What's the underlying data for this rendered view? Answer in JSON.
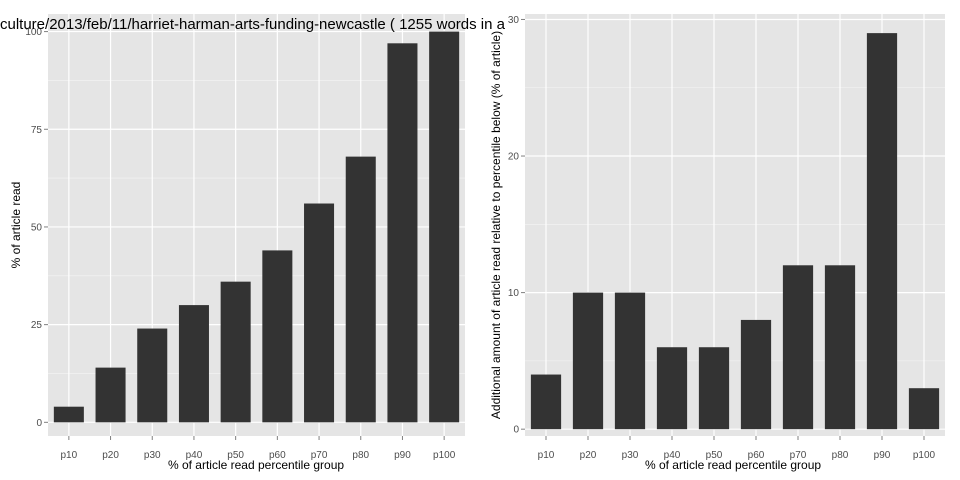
{
  "chart_data": [
    {
      "type": "bar",
      "title": "culture/2013/feb/11/harriet-harman-arts-funding-newcastle ( 1255 words in a",
      "xlabel": "% of article read percentile group",
      "ylabel": "% of article read",
      "categories": [
        "p10",
        "p20",
        "p30",
        "p40",
        "p50",
        "p60",
        "p70",
        "p80",
        "p90",
        "p100"
      ],
      "values": [
        4,
        14,
        24,
        30,
        36,
        44,
        56,
        68,
        97,
        100
      ],
      "ylim": [
        -3.5,
        104.5
      ],
      "yticks": [
        0,
        25,
        50,
        75,
        100
      ],
      "grid": true,
      "bar_color": "#333333",
      "panel_color": "#e5e5e5",
      "grid_color": "#ffffff"
    },
    {
      "type": "bar",
      "title": "",
      "xlabel": "% of article read percentile group",
      "ylabel": "Additional amount of article read relative to percentile below (% of article)",
      "categories": [
        "p10",
        "p20",
        "p30",
        "p40",
        "p50",
        "p60",
        "p70",
        "p80",
        "p90",
        "p100"
      ],
      "values": [
        4,
        10,
        10,
        6,
        6,
        8,
        12,
        12,
        29,
        3
      ],
      "ylim": [
        -0.5,
        30.4
      ],
      "yticks": [
        0,
        10,
        20,
        30
      ],
      "grid": true,
      "bar_color": "#333333",
      "panel_color": "#e5e5e5",
      "grid_color": "#ffffff"
    }
  ]
}
